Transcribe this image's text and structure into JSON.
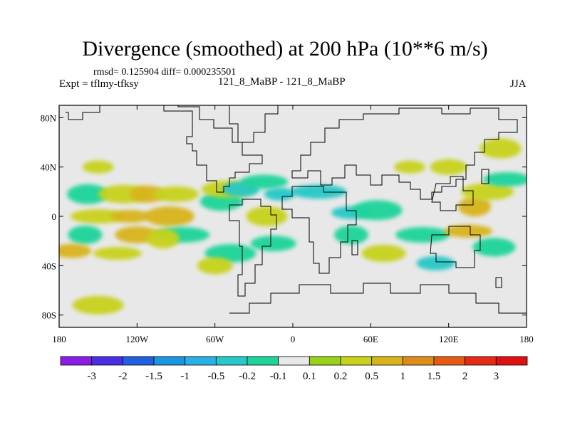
{
  "header": {
    "title": "Divergence (smoothed) at 200 hPa (10**6 m/s)",
    "stats": "rmsd= 0.125904 diff= 0.000235501",
    "expt": "Expt = tflmy-tfksy",
    "cases": "121_8_MaBP - 121_8_MaBP",
    "season": "JJA"
  },
  "chart_data": {
    "type": "heatmap",
    "title": "Divergence (smoothed) at 200 hPa (10**6 m/s)",
    "xlabel": "",
    "ylabel": "",
    "xlim": [
      -180,
      180
    ],
    "ylim": [
      -90,
      90
    ],
    "x_ticks": [
      -180,
      -120,
      -60,
      0,
      60,
      120,
      180
    ],
    "x_tick_labels": [
      "180",
      "120W",
      "60W",
      "0",
      "60E",
      "120E",
      "180"
    ],
    "y_ticks": [
      80,
      40,
      0,
      -40,
      -80
    ],
    "y_tick_labels": [
      "80N",
      "40N",
      "0",
      "40S",
      "80S"
    ],
    "colorbar_levels": [
      "-3",
      "-2",
      "-1.5",
      "-1",
      "-0.5",
      "-0.2",
      "-0.1",
      "0.1",
      "0.2",
      "0.5",
      "1",
      "1.5",
      "2",
      "3"
    ],
    "colorbar_colors": [
      "#8a1ee6",
      "#4a2ee6",
      "#2060e0",
      "#1b96e0",
      "#2ab0e8",
      "#26c8c8",
      "#1ed49a",
      "#e8e8e8",
      "#9ad21a",
      "#c8d21a",
      "#d8b41a",
      "#e08c1a",
      "#e65a14",
      "#e62a14",
      "#e01010"
    ],
    "background_color": "#e8e8e8",
    "blobs": [
      {
        "lon": -150,
        "lat": 40,
        "value": 0.2
      },
      {
        "lon": -158,
        "lat": 18,
        "value": -0.2
      },
      {
        "lon": -130,
        "lat": 18,
        "value": 0.2
      },
      {
        "lon": -112,
        "lat": 18,
        "value": 0.5
      },
      {
        "lon": -90,
        "lat": 18,
        "value": 0.2
      },
      {
        "lon": -150,
        "lat": 0,
        "value": 0.2
      },
      {
        "lon": -125,
        "lat": 0,
        "value": 0.5
      },
      {
        "lon": -95,
        "lat": 0,
        "value": 0.5
      },
      {
        "lon": -160,
        "lat": -15,
        "value": -0.2
      },
      {
        "lon": -120,
        "lat": -15,
        "value": 0.5
      },
      {
        "lon": -85,
        "lat": -15,
        "value": -0.2
      },
      {
        "lon": -170,
        "lat": -28,
        "value": 0.5
      },
      {
        "lon": -135,
        "lat": -30,
        "value": 0.2
      },
      {
        "lon": -100,
        "lat": -18,
        "value": 0.2
      },
      {
        "lon": -55,
        "lat": 12,
        "value": -0.2
      },
      {
        "lon": -50,
        "lat": 22,
        "value": 0.2
      },
      {
        "lon": -40,
        "lat": 22,
        "value": -0.5
      },
      {
        "lon": -22,
        "lat": 28,
        "value": -0.2
      },
      {
        "lon": -10,
        "lat": 18,
        "value": -0.5
      },
      {
        "lon": -20,
        "lat": 0,
        "value": 0.2
      },
      {
        "lon": -48,
        "lat": -30,
        "value": -0.2
      },
      {
        "lon": -60,
        "lat": -40,
        "value": 0.2
      },
      {
        "lon": -15,
        "lat": -22,
        "value": -0.2
      },
      {
        "lon": 20,
        "lat": 20,
        "value": -0.5
      },
      {
        "lon": 45,
        "lat": 3,
        "value": -0.5
      },
      {
        "lon": 65,
        "lat": 5,
        "value": -0.2
      },
      {
        "lon": 45,
        "lat": -15,
        "value": -0.2
      },
      {
        "lon": 70,
        "lat": -30,
        "value": 0.2
      },
      {
        "lon": 100,
        "lat": -15,
        "value": -0.2
      },
      {
        "lon": 110,
        "lat": -38,
        "value": -0.5
      },
      {
        "lon": 135,
        "lat": -12,
        "value": 0.5
      },
      {
        "lon": 140,
        "lat": 8,
        "value": 0.5
      },
      {
        "lon": 155,
        "lat": -25,
        "value": -0.2
      },
      {
        "lon": 150,
        "lat": 20,
        "value": 0.2
      },
      {
        "lon": 120,
        "lat": 40,
        "value": 0.2
      },
      {
        "lon": 165,
        "lat": 30,
        "value": -0.2
      },
      {
        "lon": 90,
        "lat": 40,
        "value": 0.2
      },
      {
        "lon": 160,
        "lat": 55,
        "value": 0.2
      },
      {
        "lon": -150,
        "lat": -72,
        "value": 0.2
      }
    ]
  }
}
